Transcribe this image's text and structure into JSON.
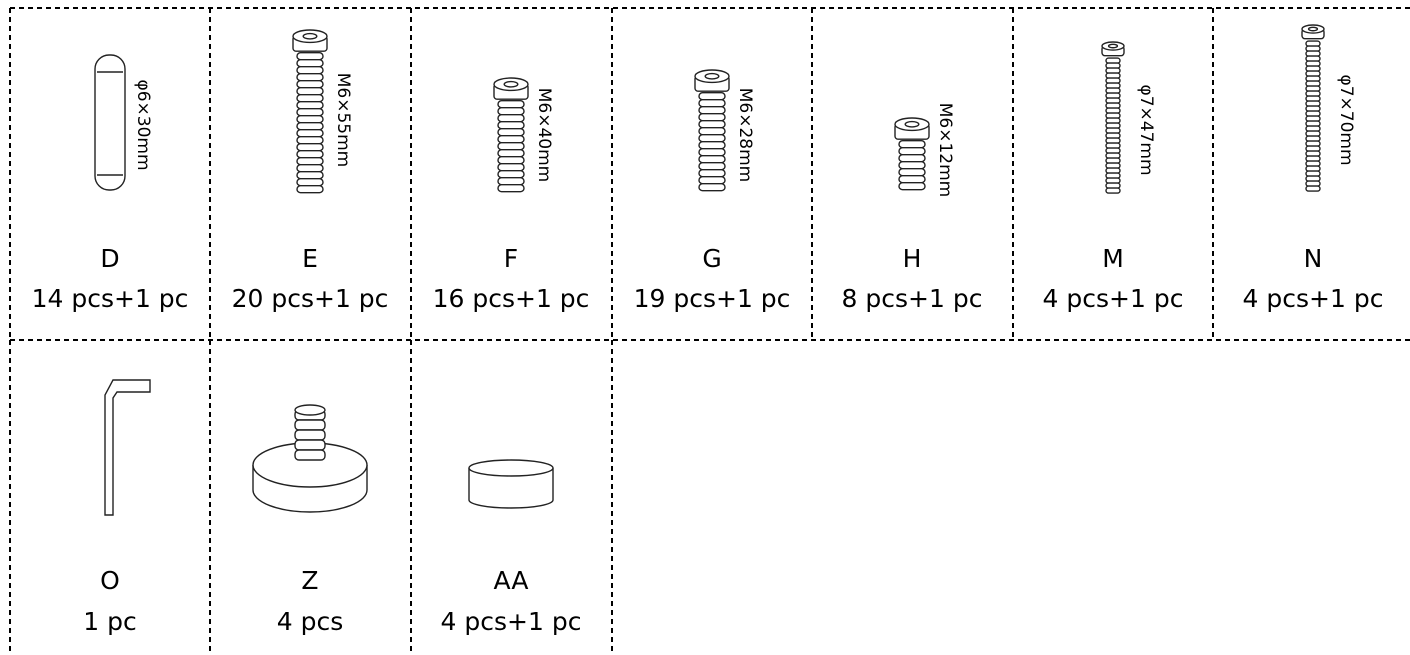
{
  "parts": [
    {
      "label": "D",
      "quantity": "14 pcs+1 pc",
      "size": "φ6×30mm"
    },
    {
      "label": "E",
      "quantity": "20 pcs+1 pc",
      "size": "M6×55mm"
    },
    {
      "label": "F",
      "quantity": "16 pcs+1 pc",
      "size": "M6×40mm"
    },
    {
      "label": "G",
      "quantity": "19 pcs+1 pc",
      "size": "M6×28mm"
    },
    {
      "label": "H",
      "quantity": "8 pcs+1 pc",
      "size": "M6×12mm"
    },
    {
      "label": "M",
      "quantity": "4 pcs+1 pc",
      "size": "φ7×47mm"
    },
    {
      "label": "N",
      "quantity": "4 pcs+1 pc",
      "size": "φ7×70mm"
    },
    {
      "label": "O",
      "quantity": "1 pc"
    },
    {
      "label": "Z",
      "quantity": "4 pcs"
    },
    {
      "label": "AA",
      "quantity": "4 pcs+1 pc"
    }
  ]
}
